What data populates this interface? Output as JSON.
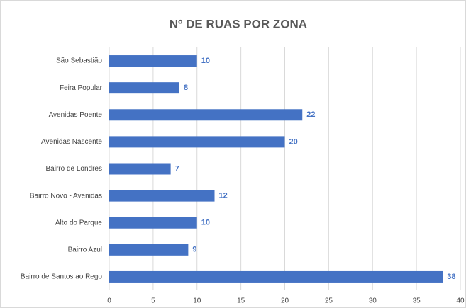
{
  "chart_data": {
    "type": "bar",
    "title": "Nº DE RUAS POR ZONA",
    "categories": [
      "São Sebastião",
      "Feira Popular",
      "Avenidas Poente",
      "Avenidas Nascente",
      "Bairro de Londres",
      "Bairro Novo - Avenidas",
      "Alto do Parque",
      "Bairro Azul",
      "Bairro de Santos ao Rego"
    ],
    "values": [
      10,
      8,
      22,
      20,
      7,
      12,
      10,
      9,
      38
    ],
    "color": "#4472c4",
    "xlim": [
      0,
      40
    ],
    "xticks": [
      0,
      5,
      10,
      15,
      20,
      25,
      30,
      35,
      40
    ],
    "grid": true
  }
}
